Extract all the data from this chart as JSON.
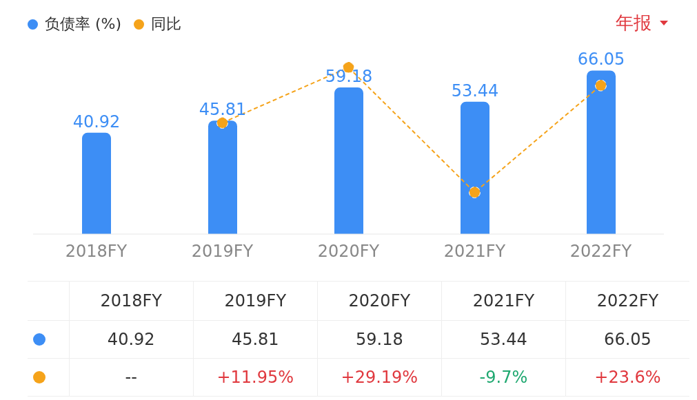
{
  "chart_data": {
    "type": "bar",
    "categories": [
      "2018FY",
      "2019FY",
      "2020FY",
      "2021FY",
      "2022FY"
    ],
    "series": [
      {
        "name": "负债率 (%)",
        "color": "#3d8ef5",
        "values": [
          40.92,
          45.81,
          59.18,
          53.44,
          66.05
        ],
        "value_labels": [
          "40.92",
          "45.81",
          "59.18",
          "53.44",
          "66.05"
        ]
      },
      {
        "name": "同比",
        "type": "line",
        "axis": "y2",
        "color": "#f5a31a",
        "values": [
          null,
          11.95,
          29.19,
          -9.7,
          23.6
        ],
        "value_labels": [
          "--",
          "+11.95%",
          "+29.19%",
          "-9.7%",
          "+23.6%"
        ],
        "line_style": "dashed",
        "marker": "circle"
      }
    ],
    "tick_labels": "x",
    "grid": false,
    "legend": "top left",
    "annotations": [
      "年报"
    ]
  }
}
